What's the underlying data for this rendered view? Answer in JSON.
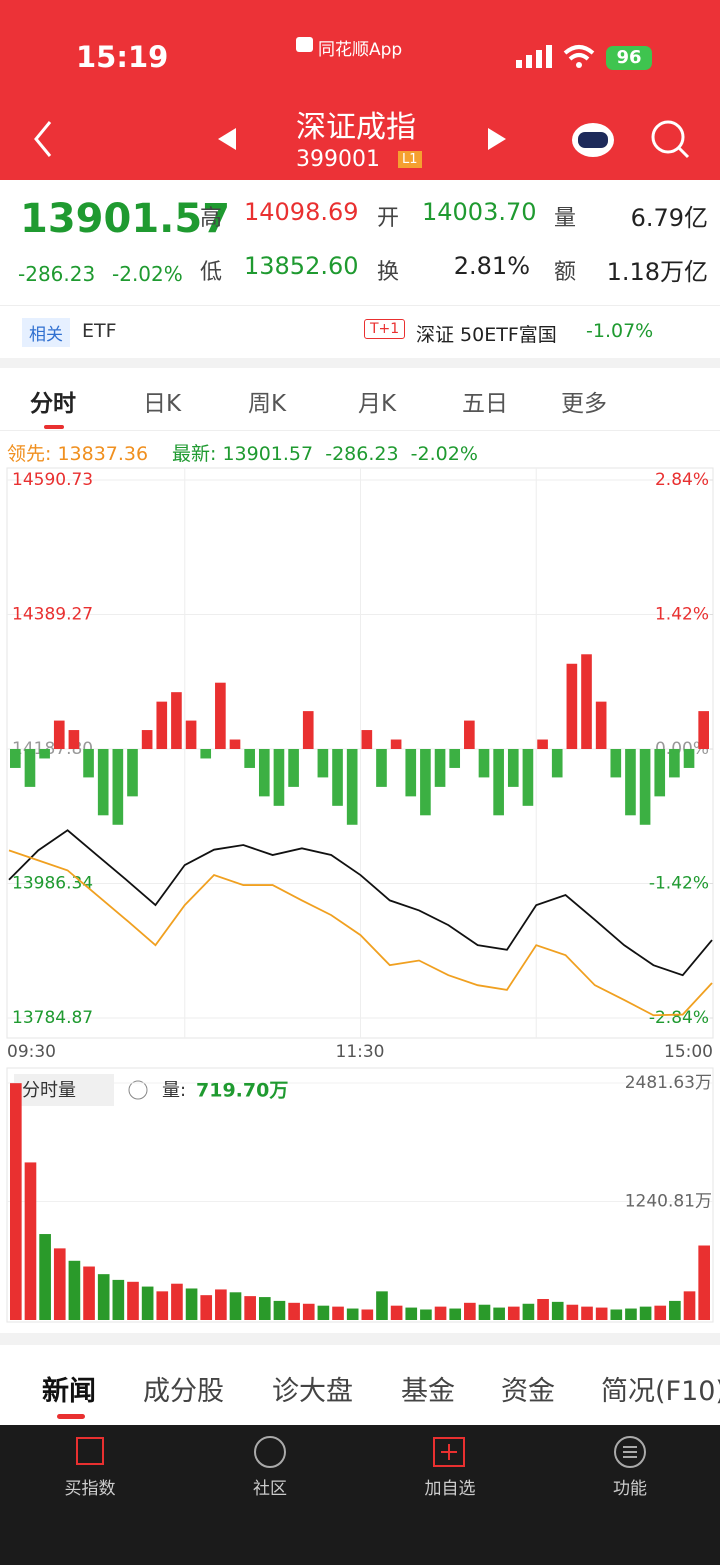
{
  "status": {
    "time": "15:19",
    "app": "同花顺App",
    "battery": "96"
  },
  "header": {
    "title": "深证成指",
    "code": "399001",
    "level": "L1"
  },
  "quote": {
    "price": "13901.57",
    "change": "-286.23",
    "pct": "-2.02%",
    "fields": [
      {
        "label": "高",
        "value": "14098.69"
      },
      {
        "label": "开",
        "value": "14003.70"
      },
      {
        "label": "量",
        "value": "6.79亿"
      },
      {
        "label": "低",
        "value": "13852.60"
      },
      {
        "label": "换",
        "value": "2.81%"
      },
      {
        "label": "额",
        "value": "1.18万亿"
      }
    ]
  },
  "etf": {
    "tag": "相关",
    "name": "ETF",
    "badge": "T+1",
    "fund": "深证 50ETF富国",
    "pct": "-1.07%"
  },
  "tabs": [
    "分时",
    "日K",
    "周K",
    "月K",
    "五日",
    "更多"
  ],
  "legend": {
    "lead_label": "领先:",
    "lead": "13837.36",
    "latest_label": "最新:",
    "latest": "13901.57",
    "change": "-286.23",
    "pct": "-2.02%"
  },
  "chart": {
    "type": "line",
    "ylim": [
      13784.87,
      14590.73
    ],
    "yticks": [
      14590.73,
      14389.27,
      {
        "value": 14187.8,
        "label": "14187.80"
      },
      13986.34,
      13784.87
    ],
    "y2lim": [
      -2.84,
      2.84
    ],
    "y2ticks": [
      {
        "value": 2.84,
        "label": "2.84%"
      },
      {
        "value": 1.42,
        "label": "1.42%"
      },
      {
        "value": 0,
        "label": "0.00%"
      },
      {
        "value": -1.42,
        "label": "-1.42%"
      },
      {
        "value": -2.84,
        "label": "-2.84%"
      }
    ],
    "xlim": [
      0,
      240
    ],
    "xlabels": [
      "09:30",
      "11:30",
      "15:00"
    ],
    "x": [
      0,
      10,
      20,
      30,
      40,
      50,
      60,
      70,
      80,
      90,
      100,
      110,
      120,
      130,
      140,
      150,
      160,
      170,
      180,
      190,
      200,
      210,
      220,
      230,
      240
    ],
    "series": [
      {
        "name": "最新",
        "color": "#111111",
        "values": [
          13992,
          14036,
          14066,
          14029,
          13992,
          13954,
          14014,
          14037,
          14044,
          14029,
          14039,
          14029,
          13999,
          13961,
          13946,
          13924,
          13894,
          13887,
          13954,
          13969,
          13932,
          13894,
          13864,
          13849,
          13901.57
        ]
      },
      {
        "name": "领先",
        "color": "#f0a020",
        "values": [
          14036,
          14021,
          14006,
          13969,
          13932,
          13894,
          13954,
          13999,
          13984,
          13984,
          13961,
          13939,
          13909,
          13864,
          13871,
          13849,
          13834,
          13827,
          13894,
          13879,
          13834,
          13812,
          13789,
          13790,
          13837.36
        ]
      }
    ],
    "strength": [
      -0.2,
      -0.4,
      -0.1,
      0.3,
      0.2,
      -0.3,
      -0.7,
      -0.8,
      -0.5,
      0.2,
      0.5,
      0.6,
      0.3,
      -0.1,
      0.7,
      0.1,
      -0.2,
      -0.5,
      -0.6,
      -0.4,
      0.4,
      -0.3,
      -0.6,
      -0.8,
      0.2,
      -0.4,
      0.1,
      -0.5,
      -0.7,
      -0.4,
      -0.2,
      0.3,
      -0.3,
      -0.7,
      -0.4,
      -0.6,
      0.1,
      -0.3,
      0.9,
      1.0,
      0.5,
      -0.3,
      -0.7,
      -0.8,
      -0.5,
      -0.3,
      -0.2,
      0.4
    ]
  },
  "volume": {
    "type": "bar",
    "selector": "分时量",
    "label": "量:",
    "current": "719.70万",
    "ylim": [
      0,
      2481.63
    ],
    "yticks": [
      {
        "value": 2481.63,
        "label": "2481.63万"
      },
      {
        "value": 1240.81,
        "label": "1240.81万"
      }
    ],
    "values": [
      2480,
      1650,
      900,
      750,
      620,
      560,
      480,
      420,
      400,
      350,
      300,
      380,
      330,
      260,
      320,
      290,
      250,
      240,
      200,
      180,
      170,
      150,
      140,
      120,
      110,
      300,
      150,
      130,
      110,
      140,
      120,
      180,
      160,
      130,
      140,
      170,
      220,
      190,
      160,
      140,
      130,
      110,
      120,
      140,
      150,
      200,
      300,
      780
    ],
    "up": [
      true,
      true,
      false,
      true,
      false,
      true,
      false,
      false,
      true,
      false,
      true,
      true,
      false,
      true,
      true,
      false,
      true,
      false,
      false,
      true,
      true,
      false,
      true,
      false,
      true,
      false,
      true,
      false,
      false,
      true,
      false,
      true,
      false,
      false,
      true,
      false,
      true,
      false,
      true,
      true,
      true,
      false,
      false,
      false,
      true,
      false,
      true,
      true
    ]
  },
  "bottom_tabs": [
    "新闻",
    "成分股",
    "诊大盘",
    "基金",
    "资金",
    "简况(F10)"
  ],
  "nav": [
    "买指数",
    "社区",
    "加自选",
    "功能"
  ]
}
